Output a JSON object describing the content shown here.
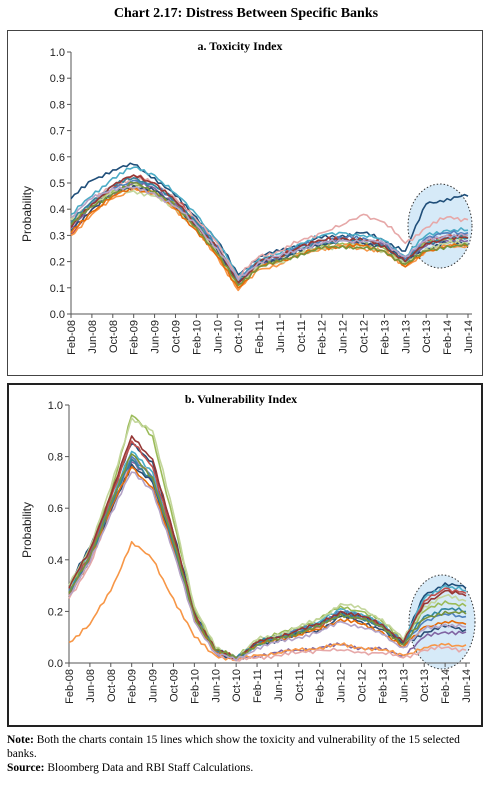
{
  "page": {
    "title": "Chart 2.17: Distress Between Specific Banks",
    "note_label": "Note:",
    "note_text": "Both the charts contain 15 lines which show the toxicity and vulnerability of the 15 selected banks.",
    "source_label": "Source:",
    "source_text": "Bloomberg Data and RBI Staff Calculations."
  },
  "chart_data": [
    {
      "type": "line",
      "title": "a. Toxicity Index",
      "xlabel": "",
      "ylabel": "Probability",
      "ylim": [
        0,
        1.0
      ],
      "yticks": [
        "0.0",
        "0.1",
        "0.2",
        "0.3",
        "0.4",
        "0.5",
        "0.6",
        "0.7",
        "0.8",
        "0.9",
        "1.0"
      ],
      "xticks": [
        "Feb-08",
        "Jun-08",
        "Oct-08",
        "Feb-09",
        "Jun-09",
        "Oct-09",
        "Feb-10",
        "Jun-10",
        "Oct-10",
        "Feb-11",
        "Jun-11",
        "Oct-11",
        "Feb-12",
        "Jun-12",
        "Oct-12",
        "Feb-13",
        "Jun-13",
        "Oct-13",
        "Feb-14",
        "Jun-14"
      ],
      "grid": false,
      "highlight": "dotted ellipse around Oct-13 to Jun-14",
      "series_count": 15,
      "series": [
        {
          "color": "#1f4e79",
          "values": [
            0.44,
            0.51,
            0.55,
            0.57,
            0.52,
            0.45,
            0.37,
            0.28,
            0.15,
            0.22,
            0.24,
            0.27,
            0.29,
            0.3,
            0.31,
            0.28,
            0.24,
            0.42,
            0.44,
            0.45
          ]
        },
        {
          "color": "#4bacc6",
          "values": [
            0.38,
            0.45,
            0.52,
            0.56,
            0.53,
            0.46,
            0.38,
            0.28,
            0.14,
            0.21,
            0.23,
            0.27,
            0.3,
            0.31,
            0.3,
            0.28,
            0.22,
            0.3,
            0.32,
            0.32
          ]
        },
        {
          "color": "#c0504d",
          "values": [
            0.3,
            0.4,
            0.48,
            0.53,
            0.5,
            0.44,
            0.36,
            0.25,
            0.12,
            0.2,
            0.22,
            0.26,
            0.28,
            0.29,
            0.28,
            0.27,
            0.21,
            0.28,
            0.3,
            0.3
          ]
        },
        {
          "color": "#9bbb59",
          "values": [
            0.35,
            0.42,
            0.47,
            0.49,
            0.47,
            0.42,
            0.35,
            0.25,
            0.12,
            0.19,
            0.21,
            0.24,
            0.26,
            0.27,
            0.27,
            0.25,
            0.2,
            0.27,
            0.29,
            0.29
          ]
        },
        {
          "color": "#8064a2",
          "values": [
            0.33,
            0.41,
            0.46,
            0.5,
            0.48,
            0.42,
            0.34,
            0.24,
            0.11,
            0.19,
            0.21,
            0.25,
            0.27,
            0.28,
            0.27,
            0.26,
            0.2,
            0.26,
            0.28,
            0.28
          ]
        },
        {
          "color": "#f79646",
          "values": [
            0.3,
            0.38,
            0.44,
            0.48,
            0.46,
            0.4,
            0.32,
            0.22,
            0.09,
            0.17,
            0.19,
            0.23,
            0.25,
            0.26,
            0.25,
            0.24,
            0.18,
            0.24,
            0.26,
            0.26
          ]
        },
        {
          "color": "#e6a8a8",
          "values": [
            0.36,
            0.43,
            0.49,
            0.52,
            0.5,
            0.44,
            0.36,
            0.27,
            0.14,
            0.22,
            0.24,
            0.28,
            0.31,
            0.34,
            0.38,
            0.35,
            0.27,
            0.33,
            0.37,
            0.36
          ]
        },
        {
          "color": "#4f81bd",
          "values": [
            0.34,
            0.42,
            0.48,
            0.51,
            0.49,
            0.43,
            0.35,
            0.26,
            0.13,
            0.2,
            0.22,
            0.26,
            0.28,
            0.29,
            0.29,
            0.27,
            0.21,
            0.29,
            0.31,
            0.31
          ]
        },
        {
          "color": "#2c4d75",
          "values": [
            0.32,
            0.4,
            0.46,
            0.49,
            0.47,
            0.41,
            0.33,
            0.24,
            0.12,
            0.19,
            0.21,
            0.24,
            0.27,
            0.28,
            0.27,
            0.26,
            0.2,
            0.25,
            0.27,
            0.27
          ]
        },
        {
          "color": "#c3d69b",
          "values": [
            0.36,
            0.42,
            0.46,
            0.47,
            0.45,
            0.4,
            0.33,
            0.23,
            0.11,
            0.18,
            0.2,
            0.23,
            0.25,
            0.26,
            0.26,
            0.24,
            0.19,
            0.25,
            0.27,
            0.27
          ]
        },
        {
          "color": "#e46c0a",
          "values": [
            0.31,
            0.39,
            0.45,
            0.48,
            0.46,
            0.4,
            0.32,
            0.22,
            0.1,
            0.18,
            0.2,
            0.23,
            0.25,
            0.26,
            0.26,
            0.24,
            0.18,
            0.24,
            0.26,
            0.26
          ]
        },
        {
          "color": "#31859c",
          "values": [
            0.35,
            0.43,
            0.49,
            0.52,
            0.49,
            0.43,
            0.35,
            0.25,
            0.13,
            0.2,
            0.22,
            0.25,
            0.27,
            0.28,
            0.28,
            0.26,
            0.2,
            0.27,
            0.29,
            0.29
          ]
        },
        {
          "color": "#953735",
          "values": [
            0.33,
            0.42,
            0.49,
            0.53,
            0.5,
            0.43,
            0.34,
            0.25,
            0.12,
            0.2,
            0.22,
            0.26,
            0.28,
            0.29,
            0.28,
            0.26,
            0.2,
            0.27,
            0.29,
            0.29
          ]
        },
        {
          "color": "#77933c",
          "values": [
            0.34,
            0.41,
            0.46,
            0.5,
            0.47,
            0.41,
            0.33,
            0.23,
            0.11,
            0.18,
            0.2,
            0.23,
            0.25,
            0.26,
            0.25,
            0.24,
            0.19,
            0.24,
            0.26,
            0.26
          ]
        },
        {
          "color": "#b3a2c7",
          "values": [
            0.37,
            0.44,
            0.48,
            0.48,
            0.46,
            0.41,
            0.34,
            0.25,
            0.13,
            0.2,
            0.22,
            0.25,
            0.27,
            0.28,
            0.28,
            0.27,
            0.22,
            0.28,
            0.3,
            0.3
          ]
        }
      ]
    },
    {
      "type": "line",
      "title": "b. Vulnerability Index",
      "xlabel": "",
      "ylabel": "Probability",
      "ylim": [
        0,
        1.0
      ],
      "yticks": [
        "0.0",
        "0.2",
        "0.4",
        "0.6",
        "0.8",
        "1.0"
      ],
      "xticks": [
        "Feb-08",
        "Jun-08",
        "Oct-08",
        "Feb-09",
        "Jun-09",
        "Oct-09",
        "Feb-10",
        "Jun-10",
        "Oct-10",
        "Feb-11",
        "Jun-11",
        "Oct-11",
        "Feb-12",
        "Jun-12",
        "Oct-12",
        "Feb-13",
        "Jun-13",
        "Oct-13",
        "Feb-14",
        "Jun-14"
      ],
      "grid": false,
      "highlight": "dotted ellipse around Oct-13 to Jun-14",
      "series_count": 15,
      "series": [
        {
          "color": "#1f4e79",
          "values": [
            0.3,
            0.45,
            0.65,
            0.85,
            0.78,
            0.5,
            0.2,
            0.05,
            0.02,
            0.08,
            0.1,
            0.12,
            0.15,
            0.2,
            0.18,
            0.15,
            0.08,
            0.26,
            0.31,
            0.29
          ]
        },
        {
          "color": "#4bacc6",
          "values": [
            0.28,
            0.43,
            0.63,
            0.82,
            0.74,
            0.48,
            0.18,
            0.05,
            0.02,
            0.07,
            0.1,
            0.13,
            0.16,
            0.21,
            0.19,
            0.15,
            0.08,
            0.25,
            0.3,
            0.28
          ]
        },
        {
          "color": "#c0504d",
          "values": [
            0.27,
            0.42,
            0.64,
            0.86,
            0.76,
            0.49,
            0.19,
            0.05,
            0.02,
            0.08,
            0.1,
            0.12,
            0.14,
            0.19,
            0.17,
            0.14,
            0.07,
            0.24,
            0.29,
            0.27
          ]
        },
        {
          "color": "#9bbb59",
          "values": [
            0.29,
            0.44,
            0.66,
            0.96,
            0.88,
            0.55,
            0.21,
            0.06,
            0.02,
            0.09,
            0.11,
            0.14,
            0.17,
            0.22,
            0.2,
            0.16,
            0.09,
            0.2,
            0.24,
            0.22
          ]
        },
        {
          "color": "#8064a2",
          "values": [
            0.26,
            0.4,
            0.6,
            0.78,
            0.7,
            0.45,
            0.17,
            0.04,
            0.01,
            0.03,
            0.04,
            0.05,
            0.06,
            0.07,
            0.06,
            0.05,
            0.03,
            0.1,
            0.12,
            0.12
          ]
        },
        {
          "color": "#f79646",
          "values": [
            0.08,
            0.15,
            0.28,
            0.47,
            0.4,
            0.25,
            0.1,
            0.03,
            0.01,
            0.03,
            0.04,
            0.05,
            0.06,
            0.07,
            0.06,
            0.05,
            0.03,
            0.06,
            0.07,
            0.07
          ]
        },
        {
          "color": "#e6a8a8",
          "values": [
            0.25,
            0.38,
            0.58,
            0.8,
            0.72,
            0.46,
            0.17,
            0.04,
            0.01,
            0.02,
            0.03,
            0.04,
            0.05,
            0.05,
            0.04,
            0.04,
            0.02,
            0.05,
            0.06,
            0.05
          ]
        },
        {
          "color": "#4f81bd",
          "values": [
            0.28,
            0.41,
            0.62,
            0.8,
            0.72,
            0.47,
            0.18,
            0.05,
            0.02,
            0.08,
            0.1,
            0.13,
            0.15,
            0.2,
            0.18,
            0.14,
            0.08,
            0.16,
            0.19,
            0.18
          ]
        },
        {
          "color": "#2c4d75",
          "values": [
            0.27,
            0.4,
            0.59,
            0.77,
            0.7,
            0.45,
            0.17,
            0.04,
            0.02,
            0.07,
            0.09,
            0.11,
            0.13,
            0.18,
            0.16,
            0.13,
            0.07,
            0.12,
            0.14,
            0.13
          ]
        },
        {
          "color": "#c3d69b",
          "values": [
            0.3,
            0.45,
            0.68,
            0.95,
            0.9,
            0.58,
            0.22,
            0.06,
            0.02,
            0.09,
            0.11,
            0.14,
            0.17,
            0.23,
            0.21,
            0.17,
            0.09,
            0.22,
            0.26,
            0.24
          ]
        },
        {
          "color": "#e46c0a",
          "values": [
            0.26,
            0.4,
            0.6,
            0.76,
            0.68,
            0.44,
            0.17,
            0.04,
            0.02,
            0.07,
            0.09,
            0.11,
            0.13,
            0.17,
            0.15,
            0.12,
            0.06,
            0.14,
            0.16,
            0.15
          ]
        },
        {
          "color": "#31859c",
          "values": [
            0.27,
            0.41,
            0.61,
            0.79,
            0.71,
            0.46,
            0.18,
            0.05,
            0.02,
            0.08,
            0.1,
            0.12,
            0.15,
            0.19,
            0.17,
            0.14,
            0.08,
            0.18,
            0.21,
            0.2
          ]
        },
        {
          "color": "#953735",
          "values": [
            0.29,
            0.44,
            0.65,
            0.88,
            0.79,
            0.5,
            0.19,
            0.05,
            0.02,
            0.08,
            0.1,
            0.13,
            0.15,
            0.2,
            0.18,
            0.15,
            0.08,
            0.23,
            0.28,
            0.26
          ]
        },
        {
          "color": "#77933c",
          "values": [
            0.27,
            0.41,
            0.62,
            0.81,
            0.72,
            0.47,
            0.18,
            0.05,
            0.02,
            0.07,
            0.09,
            0.12,
            0.14,
            0.19,
            0.17,
            0.14,
            0.07,
            0.17,
            0.2,
            0.19
          ]
        },
        {
          "color": "#b3a2c7",
          "values": [
            0.26,
            0.39,
            0.58,
            0.74,
            0.67,
            0.43,
            0.16,
            0.04,
            0.01,
            0.06,
            0.08,
            0.1,
            0.12,
            0.16,
            0.14,
            0.11,
            0.06,
            0.13,
            0.15,
            0.14
          ]
        }
      ]
    }
  ]
}
